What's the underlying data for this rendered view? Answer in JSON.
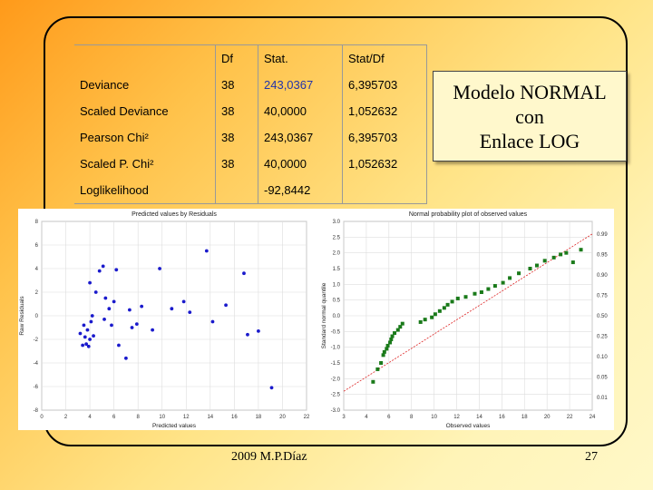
{
  "table": {
    "headers": [
      "",
      "Df",
      "Stat.",
      "Stat/Df"
    ],
    "rows": [
      [
        "Deviance",
        "38",
        "243,0367",
        "6,395703"
      ],
      [
        "Scaled Deviance",
        "38",
        "40,0000",
        "1,052632"
      ],
      [
        "Pearson Chi²",
        "38",
        "243,0367",
        "6,395703"
      ],
      [
        "Scaled P. Chi²",
        "38",
        "40,0000",
        "1,052632"
      ],
      [
        "Loglikelihood",
        "",
        "-92,8442",
        ""
      ]
    ]
  },
  "title_box": {
    "line1": "Modelo NORMAL",
    "line2": "con",
    "line3": "Enlace LOG"
  },
  "footer": {
    "left": "2009   M.P.Díaz",
    "page": "27"
  },
  "chart_data": [
    {
      "type": "scatter",
      "title": "Predicted values by Residuals",
      "xlabel": "Predicted values",
      "ylabel": "Raw Residuals",
      "xlim": [
        0,
        22
      ],
      "ylim": [
        -8,
        8
      ],
      "xticks": [
        "0",
        "2",
        "4",
        "6",
        "8",
        "10",
        "12",
        "14",
        "16",
        "18",
        "20",
        "22"
      ],
      "yticks": [
        "-8",
        "-6",
        "-4",
        "-2",
        "0",
        "2",
        "4",
        "6",
        "8"
      ],
      "color": "#1a1acc",
      "points": [
        [
          3.2,
          -1.5
        ],
        [
          3.4,
          -2.5
        ],
        [
          3.5,
          -0.8
        ],
        [
          3.6,
          -1.8
        ],
        [
          3.7,
          -2.4
        ],
        [
          3.8,
          -1.2
        ],
        [
          3.9,
          -2.6
        ],
        [
          4.0,
          -2.0
        ],
        [
          4.0,
          2.8
        ],
        [
          4.1,
          -0.5
        ],
        [
          4.2,
          0.0
        ],
        [
          4.3,
          -1.7
        ],
        [
          4.5,
          2.0
        ],
        [
          4.8,
          3.8
        ],
        [
          5.1,
          4.2
        ],
        [
          5.2,
          -0.3
        ],
        [
          5.3,
          1.5
        ],
        [
          5.6,
          0.6
        ],
        [
          5.8,
          -0.8
        ],
        [
          6.0,
          1.2
        ],
        [
          6.2,
          3.9
        ],
        [
          6.4,
          -2.5
        ],
        [
          7.0,
          -3.6
        ],
        [
          7.3,
          0.5
        ],
        [
          7.5,
          -1.0
        ],
        [
          7.9,
          -0.7
        ],
        [
          8.3,
          0.8
        ],
        [
          9.2,
          -1.2
        ],
        [
          9.8,
          4.0
        ],
        [
          10.8,
          0.6
        ],
        [
          11.8,
          1.2
        ],
        [
          12.3,
          0.3
        ],
        [
          13.7,
          5.5
        ],
        [
          14.2,
          -0.5
        ],
        [
          15.3,
          0.9
        ],
        [
          16.8,
          3.6
        ],
        [
          17.1,
          -1.6
        ],
        [
          18.0,
          -1.3
        ],
        [
          19.1,
          -6.1
        ]
      ]
    },
    {
      "type": "scatter",
      "title": "Normal probability plot of observed values",
      "xlabel": "Observed values",
      "ylabel": "Standard normal quantile",
      "xlim": [
        2,
        24
      ],
      "ylim": [
        -3.0,
        3.0
      ],
      "xticks": [
        "3",
        "4",
        "6",
        "8",
        "10",
        "12",
        "14",
        "16",
        "18",
        "20",
        "22",
        "24"
      ],
      "yticks": [
        "-3.0",
        "-2.5",
        "-2.0",
        "-1.5",
        "-1.0",
        "-0.5",
        "0.0",
        "0.5",
        "1.0",
        "1.5",
        "2.0",
        "2.5",
        "3.0"
      ],
      "right_labels": [
        "0.99",
        "0.95",
        "0.90",
        "0.75",
        "0.50",
        "0.25",
        "0.10",
        "0.05",
        "0.01"
      ],
      "color": "#1a7a1a",
      "line_color": "#dd2222",
      "fit_line": [
        [
          2,
          -2.4
        ],
        [
          24,
          2.6
        ]
      ],
      "points": [
        [
          4.6,
          -2.1
        ],
        [
          5.0,
          -1.7
        ],
        [
          5.3,
          -1.5
        ],
        [
          5.5,
          -1.25
        ],
        [
          5.6,
          -1.15
        ],
        [
          5.8,
          -1.05
        ],
        [
          5.9,
          -0.95
        ],
        [
          6.1,
          -0.85
        ],
        [
          6.2,
          -0.75
        ],
        [
          6.3,
          -0.65
        ],
        [
          6.5,
          -0.55
        ],
        [
          6.8,
          -0.45
        ],
        [
          7.0,
          -0.35
        ],
        [
          7.2,
          -0.25
        ],
        [
          8.8,
          -0.2
        ],
        [
          9.2,
          -0.12
        ],
        [
          9.8,
          -0.05
        ],
        [
          10.1,
          0.05
        ],
        [
          10.5,
          0.15
        ],
        [
          10.9,
          0.25
        ],
        [
          11.2,
          0.35
        ],
        [
          11.6,
          0.45
        ],
        [
          12.1,
          0.55
        ],
        [
          12.8,
          0.6
        ],
        [
          13.6,
          0.7
        ],
        [
          14.2,
          0.75
        ],
        [
          14.8,
          0.85
        ],
        [
          15.4,
          0.95
        ],
        [
          16.1,
          1.05
        ],
        [
          16.7,
          1.2
        ],
        [
          17.5,
          1.35
        ],
        [
          18.5,
          1.5
        ],
        [
          19.1,
          1.6
        ],
        [
          19.8,
          1.75
        ],
        [
          20.6,
          1.85
        ],
        [
          21.2,
          1.95
        ],
        [
          21.7,
          2.0
        ],
        [
          22.3,
          1.7
        ],
        [
          23.0,
          2.1
        ]
      ]
    }
  ]
}
